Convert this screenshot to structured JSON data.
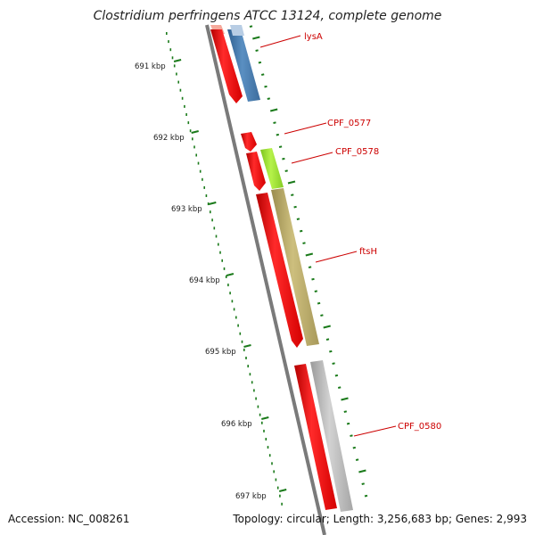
{
  "title": "Clostridium perfringens ATCC 13124, complete genome",
  "footer": {
    "accession": "Accession: NC_008261",
    "summary": "Topology: circular; Length: 3,256,683 bp; Genes: 2,993"
  },
  "ruler_labels": [
    "691 kbp",
    "692 kbp",
    "693 kbp",
    "694 kbp",
    "695 kbp",
    "696 kbp",
    "697 kbp"
  ],
  "gene_labels": [
    "lysA",
    "CPF_0577",
    "CPF_0578",
    "ftsH",
    "CPF_0580"
  ],
  "colors": {
    "backbone": "#7a7a7a",
    "ruler_ticks": "#1a7a1a",
    "label_red": "#cc0000",
    "cds_red": "#ff0000",
    "cds_blue": "#4a7eb0",
    "cds_light_blue": "#b8cde4",
    "cds_green": "#99e033",
    "cds_olive": "#b9aa66",
    "cds_gray": "#b8b8b8",
    "cds_pink": "#f5a99b"
  }
}
